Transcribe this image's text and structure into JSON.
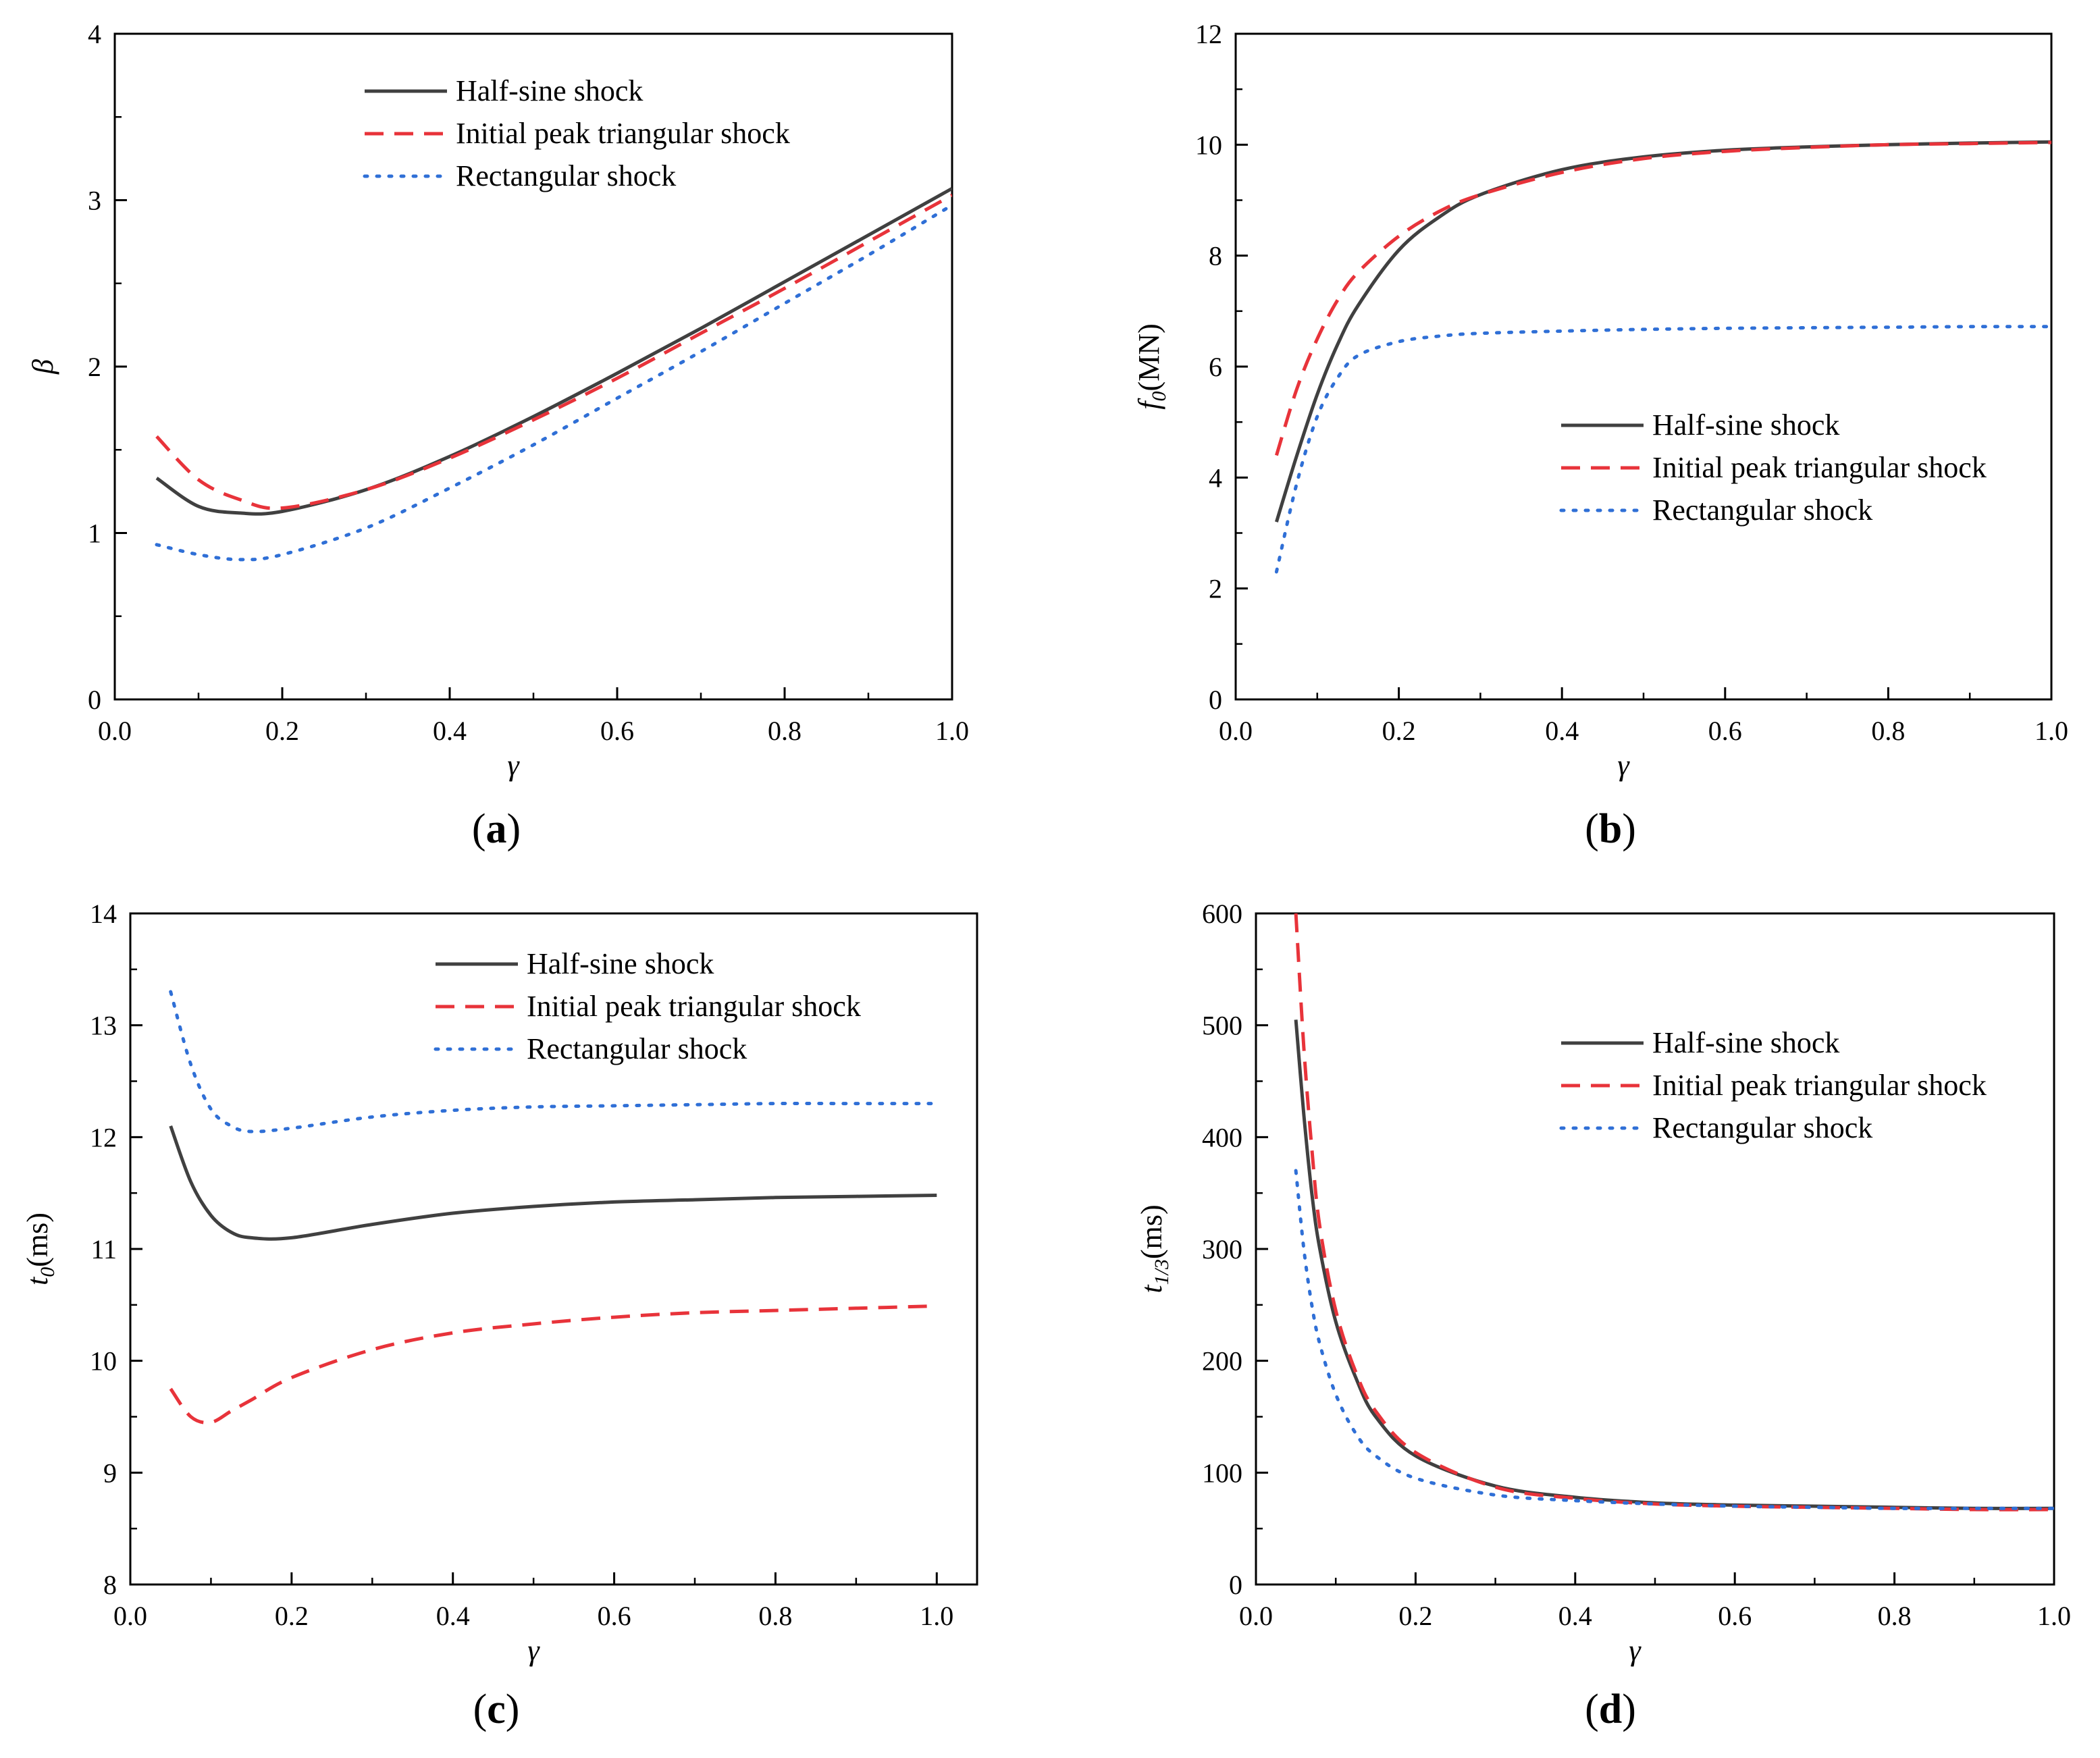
{
  "styles": {
    "half_sine": {
      "color": "#404040",
      "dash": ""
    },
    "triangular": {
      "color": "#e8333a",
      "dash": "28,16"
    },
    "rectangular": {
      "color": "#2f6fd6",
      "dash": "4,14"
    }
  },
  "chart_data": [
    {
      "id": "a",
      "type": "line",
      "panel_label": "a",
      "xlabel": "γ",
      "ylabel": "β",
      "xlim": [
        0,
        1
      ],
      "ylim": [
        0,
        4
      ],
      "xticks": [
        0.0,
        0.2,
        0.4,
        0.6,
        0.8,
        1.0
      ],
      "xtick_labels": [
        "0.0",
        "0.2",
        "0.4",
        "0.6",
        "0.8",
        "1.0"
      ],
      "yticks": [
        0,
        1,
        2,
        3,
        4
      ],
      "ytick_labels": [
        "0",
        "1",
        "2",
        "3",
        "4"
      ],
      "legend": {
        "position": "top-center",
        "entries": [
          "Half-sine shock",
          "Initial peak triangular shock",
          "Rectangular shock"
        ]
      },
      "x": [
        0.05,
        0.1,
        0.15,
        0.2,
        0.3,
        0.4,
        0.5,
        0.6,
        0.7,
        0.8,
        0.9,
        1.0
      ],
      "series": [
        {
          "name": "Half-sine shock",
          "style": "half_sine",
          "values": [
            1.33,
            1.16,
            1.12,
            1.13,
            1.26,
            1.46,
            1.7,
            1.96,
            2.23,
            2.51,
            2.79,
            3.07
          ]
        },
        {
          "name": "Initial peak triangular shock",
          "style": "triangular",
          "values": [
            1.58,
            1.32,
            1.2,
            1.15,
            1.26,
            1.45,
            1.68,
            1.93,
            2.2,
            2.47,
            2.75,
            3.03
          ]
        },
        {
          "name": "Rectangular shock",
          "style": "rectangular",
          "values": [
            0.93,
            0.87,
            0.84,
            0.87,
            1.03,
            1.27,
            1.53,
            1.81,
            2.09,
            2.38,
            2.67,
            2.97
          ]
        }
      ]
    },
    {
      "id": "b",
      "type": "line",
      "panel_label": "b",
      "xlabel": "γ",
      "ylabel": "f0(MN)",
      "ylabel_main": "f",
      "ylabel_sub": "0",
      "ylabel_unit": "(MN)",
      "xlim": [
        0,
        1
      ],
      "ylim": [
        0,
        12
      ],
      "xticks": [
        0.0,
        0.2,
        0.4,
        0.6,
        0.8,
        1.0
      ],
      "xtick_labels": [
        "0.0",
        "0.2",
        "0.4",
        "0.6",
        "0.8",
        "1.0"
      ],
      "yticks": [
        0,
        2,
        4,
        6,
        8,
        10,
        12
      ],
      "ytick_labels": [
        "0",
        "2",
        "4",
        "6",
        "8",
        "10",
        "12"
      ],
      "legend": {
        "position": "center-right",
        "entries": [
          "Half-sine shock",
          "Initial peak triangular shock",
          "Rectangular shock"
        ]
      },
      "x": [
        0.05,
        0.075,
        0.1,
        0.125,
        0.15,
        0.2,
        0.25,
        0.3,
        0.4,
        0.5,
        0.6,
        0.7,
        0.8,
        0.9,
        1.0
      ],
      "series": [
        {
          "name": "Half-sine shock",
          "style": "half_sine",
          "values": [
            3.2,
            4.4,
            5.5,
            6.4,
            7.1,
            8.1,
            8.7,
            9.1,
            9.55,
            9.78,
            9.9,
            9.96,
            10.0,
            10.03,
            10.05
          ]
        },
        {
          "name": "Initial peak triangular shock",
          "style": "triangular",
          "values": [
            4.4,
            5.6,
            6.5,
            7.2,
            7.7,
            8.35,
            8.8,
            9.1,
            9.5,
            9.75,
            9.88,
            9.95,
            10.0,
            10.02,
            10.04
          ]
        },
        {
          "name": "Rectangular shock",
          "style": "rectangular",
          "values": [
            2.3,
            3.9,
            5.1,
            5.8,
            6.2,
            6.45,
            6.55,
            6.6,
            6.64,
            6.67,
            6.69,
            6.7,
            6.71,
            6.72,
            6.72
          ]
        }
      ]
    },
    {
      "id": "c",
      "type": "line",
      "panel_label": "c",
      "xlabel": "γ",
      "ylabel": "t0(ms)",
      "ylabel_main": "t",
      "ylabel_sub": "0",
      "ylabel_unit": "(ms)",
      "xlim": [
        0,
        1.05
      ],
      "ylim": [
        8,
        14
      ],
      "xticks": [
        0.0,
        0.2,
        0.4,
        0.6,
        0.8,
        1.0
      ],
      "xtick_labels": [
        "0.0",
        "0.2",
        "0.4",
        "0.6",
        "0.8",
        "1.0"
      ],
      "yticks": [
        8,
        9,
        10,
        11,
        12,
        13,
        14
      ],
      "ytick_labels": [
        "8",
        "9",
        "10",
        "11",
        "12",
        "13",
        "14"
      ],
      "legend": {
        "position": "top-right",
        "entries": [
          "Half-sine shock",
          "Initial peak triangular shock",
          "Rectangular shock"
        ]
      },
      "x": [
        0.05,
        0.075,
        0.1,
        0.125,
        0.15,
        0.2,
        0.3,
        0.4,
        0.5,
        0.6,
        0.7,
        0.8,
        0.9,
        1.0
      ],
      "series": [
        {
          "name": "Half-sine shock",
          "style": "half_sine",
          "values": [
            12.1,
            11.6,
            11.3,
            11.15,
            11.1,
            11.1,
            11.22,
            11.32,
            11.38,
            11.42,
            11.44,
            11.46,
            11.47,
            11.48
          ]
        },
        {
          "name": "Initial peak triangular shock",
          "style": "triangular",
          "values": [
            9.75,
            9.5,
            9.45,
            9.55,
            9.65,
            9.85,
            10.1,
            10.25,
            10.33,
            10.39,
            10.43,
            10.45,
            10.47,
            10.49
          ]
        },
        {
          "name": "Rectangular shock",
          "style": "rectangular",
          "values": [
            13.3,
            12.65,
            12.25,
            12.1,
            12.05,
            12.08,
            12.18,
            12.24,
            12.27,
            12.28,
            12.29,
            12.3,
            12.3,
            12.3
          ]
        }
      ]
    },
    {
      "id": "d",
      "type": "line",
      "panel_label": "d",
      "xlabel": "γ",
      "ylabel": "t1/3(ms)",
      "ylabel_main": "t",
      "ylabel_sub": "1/3",
      "ylabel_unit": "(ms)",
      "xlim": [
        0,
        1
      ],
      "ylim": [
        0,
        600
      ],
      "xticks": [
        0.0,
        0.2,
        0.4,
        0.6,
        0.8,
        1.0
      ],
      "xtick_labels": [
        "0.0",
        "0.2",
        "0.4",
        "0.6",
        "0.8",
        "1.0"
      ],
      "yticks": [
        0,
        100,
        200,
        300,
        400,
        500,
        600
      ],
      "ytick_labels": [
        "0",
        "100",
        "200",
        "300",
        "400",
        "500",
        "600"
      ],
      "legend": {
        "position": "top-right",
        "entries": [
          "Half-sine shock",
          "Initial peak triangular shock",
          "Rectangular shock"
        ]
      },
      "x": [
        0.05,
        0.06,
        0.07,
        0.08,
        0.1,
        0.125,
        0.15,
        0.2,
        0.3,
        0.4,
        0.5,
        0.6,
        0.7,
        0.8,
        0.9,
        1.0
      ],
      "series": [
        {
          "name": "Half-sine shock",
          "style": "half_sine",
          "values": [
            505,
            420,
            350,
            300,
            235,
            185,
            150,
            115,
            88,
            78,
            73,
            71,
            70,
            69,
            68,
            68
          ]
        },
        {
          "name": "Initial peak triangular shock",
          "style": "triangular",
          "values": [
            600,
            480,
            390,
            320,
            245,
            190,
            155,
            118,
            87,
            77,
            72,
            70,
            69,
            68,
            67,
            67
          ]
        },
        {
          "name": "Rectangular shock",
          "style": "rectangular",
          "values": [
            370,
            300,
            250,
            215,
            170,
            135,
            115,
            95,
            80,
            75,
            72,
            70,
            69,
            68,
            68,
            68
          ]
        }
      ]
    }
  ]
}
